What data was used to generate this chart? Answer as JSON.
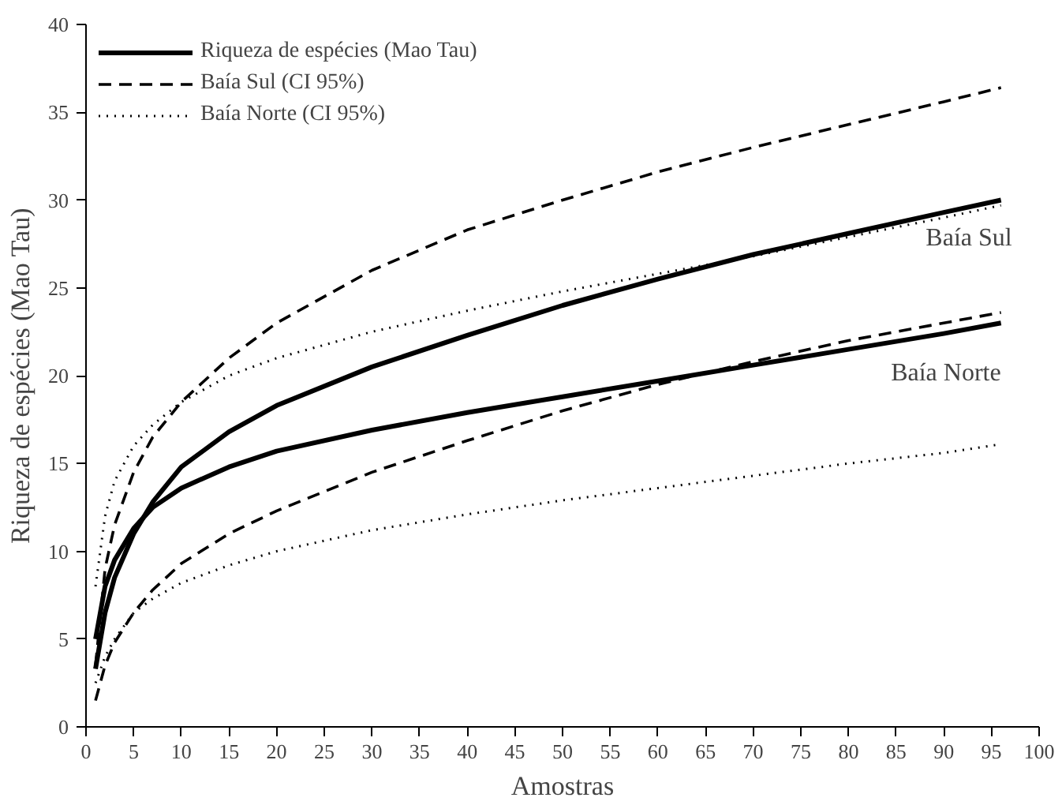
{
  "chart_data": {
    "type": "line",
    "xlabel": "Amostras",
    "ylabel": "Riqueza de espécies (Mao Tau)",
    "x": [
      1,
      2,
      3,
      5,
      7,
      10,
      15,
      20,
      30,
      40,
      50,
      60,
      70,
      80,
      90,
      96
    ],
    "series": [
      {
        "name": "Riqueza de espécies (Mao Tau)",
        "color": "#000000",
        "line_style": "solid",
        "values": [
          3.3,
          6.5,
          8.5,
          11,
          12.8,
          14.8,
          16.8,
          18.3,
          20.5,
          22.3,
          24,
          25.5,
          26.9,
          28.1,
          29.3,
          30
        ]
      },
      {
        "color": "#000000",
        "line_style": "solid",
        "values": [
          5,
          8,
          9.5,
          11.3,
          12.5,
          13.6,
          14.8,
          15.7,
          16.9,
          17.9,
          18.8,
          19.7,
          20.6,
          21.5,
          22.4,
          23
        ]
      },
      {
        "name": "Baía Sul (CI 95%)",
        "color": "#000000",
        "line_style": "dashed",
        "values": [
          3.5,
          9,
          11.5,
          14.5,
          16.5,
          18.5,
          21,
          23,
          26,
          28.3,
          30,
          31.6,
          33,
          34.3,
          35.6,
          36.4
        ]
      },
      {
        "color": "#000000",
        "line_style": "dashed",
        "values": [
          1.5,
          3.5,
          4.8,
          6.5,
          7.8,
          9.3,
          11,
          12.3,
          14.5,
          16.3,
          18,
          19.5,
          20.8,
          22,
          23,
          23.6
        ]
      },
      {
        "name": "Baía Norte (CI 95%)",
        "color": "#000000",
        "line_style": "dotted",
        "values": [
          8,
          12,
          14,
          16,
          17.2,
          18.5,
          20,
          21,
          22.5,
          23.7,
          24.8,
          25.8,
          26.8,
          27.9,
          29,
          29.7
        ]
      },
      {
        "color": "#000000",
        "line_style": "dotted",
        "values": [
          2.5,
          4,
          5,
          6.5,
          7.3,
          8.2,
          9.2,
          10,
          11.2,
          12.1,
          12.9,
          13.6,
          14.3,
          15,
          15.6,
          16.1
        ]
      }
    ],
    "annotations": [
      "Baía Sul",
      "Baía Norte"
    ],
    "xlim": [
      0,
      100
    ],
    "xticks": [
      0,
      5,
      10,
      15,
      20,
      25,
      30,
      35,
      40,
      45,
      50,
      55,
      60,
      65,
      70,
      75,
      80,
      85,
      90,
      95,
      100
    ],
    "ylim": [
      0,
      40
    ],
    "yticks": [
      0,
      5,
      10,
      15,
      20,
      25,
      30,
      35,
      40
    ],
    "grid": false,
    "legend": "top left",
    "marker": "none"
  }
}
